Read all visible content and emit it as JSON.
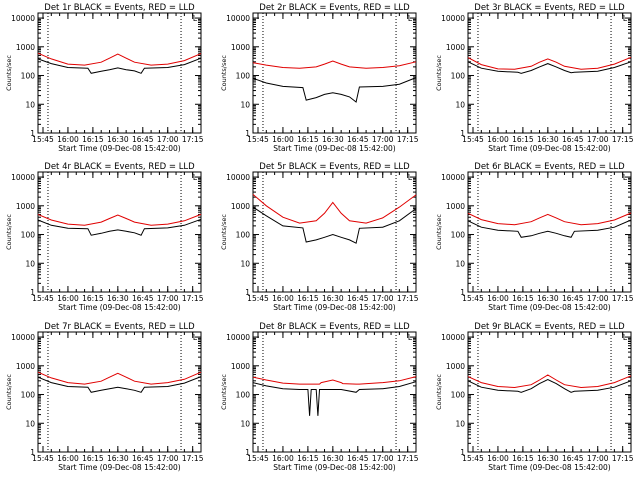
{
  "figure": {
    "y_label": "Counts/sec",
    "x_label": "Start Time (09-Dec-08 15:42:00)",
    "x_ticks": [
      "15:45",
      "16:00",
      "16:15",
      "16:30",
      "16:45",
      "17:00",
      "17:15"
    ],
    "y_ticks": [
      "1",
      "10",
      "100",
      "1000",
      "10000"
    ],
    "corner_mark": "L"
  },
  "colors": {
    "events": "#000000",
    "lld": "#e00000",
    "axes": "#000000",
    "background": "#ffffff"
  },
  "chart_data": [
    {
      "type": "line",
      "title": "Det 1r BLACK = Events, RED = LLD",
      "xlabel": "Start Time (09-Dec-08 15:42:00)",
      "ylabel": "Counts/sec",
      "x_range": [
        "15:42",
        "17:20"
      ],
      "y_scale": "log",
      "ylim": [
        1,
        15000
      ],
      "vertical_markers": [
        "15:48",
        "17:08"
      ],
      "grid": false,
      "series": [
        {
          "name": "Events",
          "color": "#000000",
          "x": [
            "15:42",
            "15:50",
            "16:00",
            "16:12",
            "16:14",
            "16:20",
            "16:25",
            "16:30",
            "16:35",
            "16:40",
            "16:44",
            "16:46",
            "17:00",
            "17:10",
            "17:20"
          ],
          "y": [
            380,
            260,
            190,
            180,
            120,
            140,
            160,
            185,
            160,
            145,
            120,
            180,
            190,
            240,
            400
          ]
        },
        {
          "name": "LLD",
          "color": "#e00000",
          "x": [
            "15:42",
            "15:50",
            "16:00",
            "16:10",
            "16:20",
            "16:25",
            "16:30",
            "16:35",
            "16:40",
            "16:50",
            "17:00",
            "17:10",
            "17:20"
          ],
          "y": [
            600,
            380,
            250,
            230,
            290,
            400,
            560,
            400,
            290,
            230,
            250,
            330,
            580
          ]
        }
      ]
    },
    {
      "type": "line",
      "title": "Det 2r BLACK = Events, RED = LLD",
      "xlabel": "Start Time (09-Dec-08 15:42:00)",
      "ylabel": "Counts/sec",
      "x_range": [
        "15:42",
        "17:20"
      ],
      "y_scale": "log",
      "ylim": [
        1,
        15000
      ],
      "vertical_markers": [
        "15:48",
        "17:08"
      ],
      "grid": false,
      "series": [
        {
          "name": "Events",
          "color": "#000000",
          "x": [
            "15:42",
            "15:50",
            "16:00",
            "16:12",
            "16:14",
            "16:20",
            "16:25",
            "16:30",
            "16:35",
            "16:40",
            "16:44",
            "16:46",
            "17:00",
            "17:10",
            "17:20"
          ],
          "y": [
            80,
            55,
            42,
            38,
            14,
            17,
            22,
            25,
            22,
            18,
            12,
            40,
            42,
            50,
            85
          ]
        },
        {
          "name": "LLD",
          "color": "#e00000",
          "x": [
            "15:42",
            "15:50",
            "16:00",
            "16:10",
            "16:20",
            "16:25",
            "16:30",
            "16:35",
            "16:40",
            "16:50",
            "17:00",
            "17:10",
            "17:20"
          ],
          "y": [
            280,
            230,
            190,
            180,
            200,
            250,
            320,
            250,
            200,
            180,
            190,
            220,
            300
          ]
        }
      ]
    },
    {
      "type": "line",
      "title": "Det 3r BLACK = Events, RED = LLD",
      "xlabel": "Start Time (09-Dec-08 15:42:00)",
      "ylabel": "Counts/sec",
      "x_range": [
        "15:42",
        "17:20"
      ],
      "y_scale": "log",
      "ylim": [
        1,
        15000
      ],
      "vertical_markers": [
        "15:48",
        "17:08"
      ],
      "grid": false,
      "series": [
        {
          "name": "Events",
          "color": "#000000",
          "x": [
            "15:42",
            "15:50",
            "16:00",
            "16:12",
            "16:14",
            "16:20",
            "16:25",
            "16:30",
            "16:35",
            "16:40",
            "16:44",
            "16:46",
            "17:00",
            "17:10",
            "17:20"
          ],
          "y": [
            300,
            180,
            140,
            130,
            120,
            150,
            200,
            260,
            200,
            150,
            125,
            130,
            140,
            190,
            300
          ]
        },
        {
          "name": "LLD",
          "color": "#e00000",
          "x": [
            "15:42",
            "15:50",
            "16:00",
            "16:10",
            "16:20",
            "16:25",
            "16:30",
            "16:35",
            "16:40",
            "16:50",
            "17:00",
            "17:10",
            "17:20"
          ],
          "y": [
            420,
            240,
            170,
            165,
            210,
            290,
            380,
            290,
            210,
            165,
            180,
            250,
            430
          ]
        }
      ]
    },
    {
      "type": "line",
      "title": "Det 4r BLACK = Events, RED = LLD",
      "xlabel": "Start Time (09-Dec-08 15:42:00)",
      "ylabel": "Counts/sec",
      "x_range": [
        "15:42",
        "17:20"
      ],
      "y_scale": "log",
      "ylim": [
        1,
        15000
      ],
      "vertical_markers": [
        "15:48",
        "17:08"
      ],
      "grid": false,
      "series": [
        {
          "name": "Events",
          "color": "#000000",
          "x": [
            "15:42",
            "15:50",
            "16:00",
            "16:12",
            "16:14",
            "16:20",
            "16:25",
            "16:30",
            "16:35",
            "16:40",
            "16:44",
            "16:46",
            "17:00",
            "17:10",
            "17:20"
          ],
          "y": [
            320,
            210,
            165,
            160,
            95,
            110,
            130,
            145,
            130,
            115,
            95,
            160,
            170,
            210,
            340
          ]
        },
        {
          "name": "LLD",
          "color": "#e00000",
          "x": [
            "15:42",
            "15:50",
            "16:00",
            "16:10",
            "16:20",
            "16:25",
            "16:30",
            "16:35",
            "16:40",
            "16:50",
            "17:00",
            "17:10",
            "17:20"
          ],
          "y": [
            500,
            320,
            230,
            210,
            270,
            360,
            480,
            360,
            270,
            210,
            230,
            300,
            500
          ]
        }
      ]
    },
    {
      "type": "line",
      "title": "Det 5r BLACK = Events, RED = LLD",
      "xlabel": "Start Time (09-Dec-08 15:42:00)",
      "ylabel": "Counts/sec",
      "x_range": [
        "15:42",
        "17:20"
      ],
      "y_scale": "log",
      "ylim": [
        1,
        15000
      ],
      "vertical_markers": [
        "15:48",
        "17:08"
      ],
      "grid": false,
      "series": [
        {
          "name": "Events",
          "color": "#000000",
          "x": [
            "15:42",
            "15:50",
            "16:00",
            "16:12",
            "16:14",
            "16:20",
            "16:25",
            "16:30",
            "16:35",
            "16:40",
            "16:44",
            "16:46",
            "17:00",
            "17:10",
            "17:20"
          ],
          "y": [
            900,
            450,
            200,
            170,
            55,
            65,
            80,
            100,
            80,
            65,
            50,
            165,
            180,
            300,
            800
          ]
        },
        {
          "name": "LLD",
          "color": "#e00000",
          "x": [
            "15:42",
            "15:50",
            "16:00",
            "16:10",
            "16:20",
            "16:25",
            "16:30",
            "16:35",
            "16:40",
            "16:50",
            "17:00",
            "17:10",
            "17:20"
          ],
          "y": [
            2500,
            1000,
            400,
            250,
            300,
            550,
            1300,
            550,
            300,
            250,
            380,
            900,
            2400
          ]
        }
      ]
    },
    {
      "type": "line",
      "title": "Det 6r BLACK = Events, RED = LLD",
      "xlabel": "Start Time (09-Dec-08 15:42:00)",
      "ylabel": "Counts/sec",
      "x_range": [
        "15:42",
        "17:20"
      ],
      "y_scale": "log",
      "ylim": [
        1,
        15000
      ],
      "vertical_markers": [
        "15:48",
        "17:08"
      ],
      "grid": false,
      "series": [
        {
          "name": "Events",
          "color": "#000000",
          "x": [
            "15:42",
            "15:50",
            "16:00",
            "16:12",
            "16:14",
            "16:20",
            "16:25",
            "16:30",
            "16:35",
            "16:40",
            "16:44",
            "16:46",
            "17:00",
            "17:10",
            "17:20"
          ],
          "y": [
            300,
            180,
            140,
            130,
            80,
            90,
            110,
            130,
            110,
            90,
            80,
            130,
            140,
            180,
            320
          ]
        },
        {
          "name": "LLD",
          "color": "#e00000",
          "x": [
            "15:42",
            "15:50",
            "16:00",
            "16:10",
            "16:20",
            "16:25",
            "16:30",
            "16:35",
            "16:40",
            "16:50",
            "17:00",
            "17:10",
            "17:20"
          ],
          "y": [
            550,
            330,
            240,
            220,
            280,
            380,
            500,
            380,
            280,
            220,
            240,
            320,
            560
          ]
        }
      ]
    },
    {
      "type": "line",
      "title": "Det 7r BLACK = Events, RED = LLD",
      "xlabel": "Start Time (09-Dec-08 15:42:00)",
      "ylabel": "Counts/sec",
      "x_range": [
        "15:42",
        "17:20"
      ],
      "y_scale": "log",
      "ylim": [
        1,
        15000
      ],
      "vertical_markers": [
        "15:48",
        "17:08"
      ],
      "grid": false,
      "series": [
        {
          "name": "Events",
          "color": "#000000",
          "x": [
            "15:42",
            "15:50",
            "16:00",
            "16:12",
            "16:14",
            "16:20",
            "16:25",
            "16:30",
            "16:35",
            "16:40",
            "16:44",
            "16:46",
            "17:00",
            "17:10",
            "17:20"
          ],
          "y": [
            400,
            260,
            190,
            180,
            120,
            140,
            160,
            180,
            160,
            140,
            120,
            180,
            190,
            250,
            420
          ]
        },
        {
          "name": "LLD",
          "color": "#e00000",
          "x": [
            "15:42",
            "15:50",
            "16:00",
            "16:10",
            "16:20",
            "16:25",
            "16:30",
            "16:35",
            "16:40",
            "16:50",
            "17:00",
            "17:10",
            "17:20"
          ],
          "y": [
            600,
            380,
            260,
            230,
            290,
            400,
            550,
            400,
            290,
            230,
            260,
            340,
            600
          ]
        }
      ]
    },
    {
      "type": "line",
      "title": "Det 8r BLACK = Events, RED = LLD",
      "xlabel": "Start Time (09-Dec-08 15:42:00)",
      "ylabel": "Counts/sec",
      "x_range": [
        "15:42",
        "17:20"
      ],
      "y_scale": "log",
      "ylim": [
        1,
        15000
      ],
      "vertical_markers": [
        "15:48",
        "17:08"
      ],
      "grid": false,
      "series": [
        {
          "name": "Events",
          "color": "#000000",
          "x": [
            "15:42",
            "15:50",
            "16:00",
            "16:10",
            "16:15",
            "16:16",
            "16:17",
            "16:20",
            "16:21",
            "16:22",
            "16:30",
            "16:35",
            "16:44",
            "16:46",
            "17:00",
            "17:10",
            "17:20"
          ],
          "y": [
            260,
            200,
            160,
            150,
            150,
            18,
            150,
            150,
            18,
            150,
            150,
            150,
            120,
            150,
            160,
            190,
            280
          ]
        },
        {
          "name": "LLD",
          "color": "#e00000",
          "x": [
            "15:42",
            "15:50",
            "16:00",
            "16:10",
            "16:15",
            "16:22",
            "16:23",
            "16:30",
            "16:35",
            "16:36",
            "16:44",
            "16:46",
            "17:00",
            "17:10",
            "17:20"
          ],
          "y": [
            400,
            320,
            250,
            230,
            230,
            230,
            260,
            320,
            260,
            240,
            230,
            230,
            260,
            300,
            420
          ]
        }
      ]
    },
    {
      "type": "line",
      "title": "Det 9r BLACK = Events, RED = LLD",
      "xlabel": "Start Time (09-Dec-08 15:42:00)",
      "ylabel": "Counts/sec",
      "x_range": [
        "15:42",
        "17:20"
      ],
      "y_scale": "log",
      "ylim": [
        1,
        15000
      ],
      "vertical_markers": [
        "15:48",
        "17:08"
      ],
      "grid": false,
      "series": [
        {
          "name": "Events",
          "color": "#000000",
          "x": [
            "15:42",
            "15:50",
            "16:00",
            "16:12",
            "16:14",
            "16:20",
            "16:25",
            "16:30",
            "16:35",
            "16:40",
            "16:44",
            "16:46",
            "17:00",
            "17:10",
            "17:20"
          ],
          "y": [
            300,
            180,
            140,
            130,
            120,
            160,
            240,
            330,
            240,
            160,
            120,
            130,
            140,
            180,
            300
          ]
        },
        {
          "name": "LLD",
          "color": "#e00000",
          "x": [
            "15:42",
            "15:50",
            "16:00",
            "16:10",
            "16:20",
            "16:25",
            "16:30",
            "16:35",
            "16:40",
            "16:50",
            "17:00",
            "17:10",
            "17:20"
          ],
          "y": [
            420,
            260,
            190,
            175,
            220,
            320,
            480,
            320,
            220,
            175,
            190,
            260,
            450
          ]
        }
      ]
    }
  ]
}
